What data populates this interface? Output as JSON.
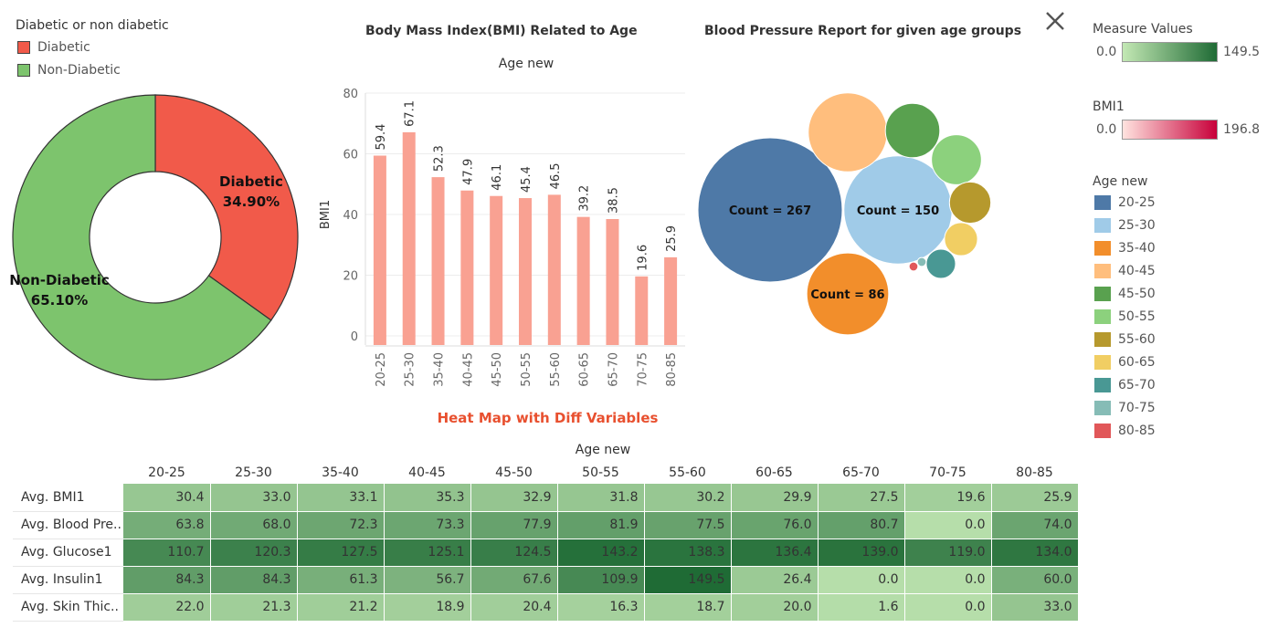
{
  "pie": {
    "legend_title": "Diabetic or non diabetic",
    "legend": [
      {
        "label": "Diabetic",
        "color": "#f15a4a"
      },
      {
        "label": "Non-Diabetic",
        "color": "#7dc46d"
      }
    ]
  },
  "bar": {
    "title": "Body Mass Index(BMI) Related to Age",
    "column_header": "Age new",
    "ylabel": "BMI1"
  },
  "bubble": {
    "title": "Blood Pressure Report for given age groups"
  },
  "heatmap": {
    "title": "Heat Map with Diff Variables",
    "column_header": "Age new"
  },
  "legends": {
    "measure": {
      "title": "Measure Values",
      "min": "0.0",
      "max": "149.5",
      "color_from": "#c3e8b4",
      "color_to": "#1f6b35"
    },
    "bmi": {
      "title": "BMI1",
      "min": "0.0",
      "max": "196.8",
      "color_from": "#ffe3df",
      "color_to": "#c8003a"
    },
    "age": {
      "title": "Age new",
      "items": [
        {
          "label": "20-25",
          "color": "#4e79a7"
        },
        {
          "label": "25-30",
          "color": "#a0cbe8"
        },
        {
          "label": "35-40",
          "color": "#f28e2b"
        },
        {
          "label": "40-45",
          "color": "#ffbe7d"
        },
        {
          "label": "45-50",
          "color": "#59a14f"
        },
        {
          "label": "50-55",
          "color": "#8cd17d"
        },
        {
          "label": "55-60",
          "color": "#b6992d"
        },
        {
          "label": "60-65",
          "color": "#f1ce63"
        },
        {
          "label": "65-70",
          "color": "#499894"
        },
        {
          "label": "70-75",
          "color": "#86bcb6"
        },
        {
          "label": "80-85",
          "color": "#e15759"
        }
      ]
    }
  },
  "chart_data": [
    {
      "type": "pie",
      "donut": true,
      "slices": [
        {
          "label": "Diabetic",
          "value": 34.9,
          "value_label": "34.90%",
          "color": "#f15a4a"
        },
        {
          "label": "Non-Diabetic",
          "value": 65.1,
          "value_label": "65.10%",
          "color": "#7dc46d"
        }
      ]
    },
    {
      "type": "bar",
      "title": "Body Mass Index(BMI) Related to Age",
      "xlabel": "Age new",
      "ylabel": "BMI1",
      "categories": [
        "20-25",
        "25-30",
        "35-40",
        "40-45",
        "45-50",
        "50-55",
        "55-60",
        "60-65",
        "65-70",
        "70-75",
        "80-85"
      ],
      "values": [
        59.4,
        67.1,
        52.3,
        47.9,
        46.1,
        45.4,
        46.5,
        39.2,
        38.5,
        19.6,
        25.9
      ],
      "value_labels": [
        "59.4",
        "67.1",
        "52.3",
        "47.9",
        "46.1",
        "45.4",
        "46.5",
        "39.2",
        "38.5",
        "19.6",
        "25.9"
      ],
      "ylim": [
        0,
        80
      ],
      "yticks": [
        0,
        20,
        40,
        60,
        80
      ],
      "ytick_labels": [
        "0",
        "20",
        "40",
        "60",
        "80"
      ],
      "grid": true
    },
    {
      "type": "bubble",
      "title": "Blood Pressure Report for given age groups",
      "bubbles": [
        {
          "category": "20-25",
          "count": 267,
          "label": "Count  = 267",
          "color": "#4e79a7"
        },
        {
          "category": "25-30",
          "count": 150,
          "label": "Count  = 150",
          "color": "#a0cbe8"
        },
        {
          "category": "35-40",
          "count": 86,
          "label": "Count  = 86",
          "color": "#f28e2b"
        },
        {
          "category": "40-45",
          "count": 80,
          "label": "",
          "color": "#ffbe7d"
        },
        {
          "category": "45-50",
          "count": 38,
          "label": "",
          "color": "#59a14f"
        },
        {
          "category": "50-55",
          "count": 32,
          "label": "",
          "color": "#8cd17d"
        },
        {
          "category": "55-60",
          "count": 22,
          "label": "",
          "color": "#b6992d"
        },
        {
          "category": "60-65",
          "count": 14,
          "label": "",
          "color": "#f1ce63"
        },
        {
          "category": "65-70",
          "count": 11,
          "label": "",
          "color": "#499894"
        },
        {
          "category": "70-75",
          "count": 1,
          "label": "",
          "color": "#86bcb6"
        },
        {
          "category": "80-85",
          "count": 1,
          "label": "",
          "color": "#e15759"
        }
      ]
    },
    {
      "type": "heatmap",
      "title": "Heat Map with Diff Variables",
      "xlabel": "Age new",
      "columns": [
        "20-25",
        "25-30",
        "35-40",
        "40-45",
        "45-50",
        "50-55",
        "55-60",
        "60-65",
        "65-70",
        "70-75",
        "80-85"
      ],
      "rows": [
        {
          "label": "Avg. BMI1",
          "values": [
            30.4,
            33.0,
            33.1,
            35.3,
            32.9,
            31.8,
            30.2,
            29.9,
            27.5,
            19.6,
            25.9
          ],
          "value_labels": [
            "30.4",
            "33.0",
            "33.1",
            "35.3",
            "32.9",
            "31.8",
            "30.2",
            "29.9",
            "27.5",
            "19.6",
            "25.9"
          ]
        },
        {
          "label": "Avg. Blood Pre..",
          "values": [
            63.8,
            68.0,
            72.3,
            73.3,
            77.9,
            81.9,
            77.5,
            76.0,
            80.7,
            0.0,
            74.0
          ],
          "value_labels": [
            "63.8",
            "68.0",
            "72.3",
            "73.3",
            "77.9",
            "81.9",
            "77.5",
            "76.0",
            "80.7",
            "0.0",
            "74.0"
          ]
        },
        {
          "label": "Avg. Glucose1",
          "values": [
            110.7,
            120.3,
            127.5,
            125.1,
            124.5,
            143.2,
            138.3,
            136.4,
            139.0,
            119.0,
            134.0
          ],
          "value_labels": [
            "110.7",
            "120.3",
            "127.5",
            "125.1",
            "124.5",
            "143.2",
            "138.3",
            "136.4",
            "139.0",
            "119.0",
            "134.0"
          ]
        },
        {
          "label": "Avg. Insulin1",
          "values": [
            84.3,
            84.3,
            61.3,
            56.7,
            67.6,
            109.9,
            149.5,
            26.4,
            0.0,
            0.0,
            60.0
          ],
          "value_labels": [
            "84.3",
            "84.3",
            "61.3",
            "56.7",
            "67.6",
            "109.9",
            "149.5",
            "26.4",
            "0.0",
            "0.0",
            "60.0"
          ]
        },
        {
          "label": "Avg. Skin Thic..",
          "values": [
            22.0,
            21.3,
            21.2,
            18.9,
            20.4,
            16.3,
            18.7,
            20.0,
            1.6,
            0.0,
            33.0
          ],
          "value_labels": [
            "22.0",
            "21.3",
            "21.2",
            "18.9",
            "20.4",
            "16.3",
            "18.7",
            "20.0",
            "1.6",
            "0.0",
            "33.0"
          ]
        }
      ],
      "color_range": [
        0.0,
        149.5
      ]
    }
  ]
}
